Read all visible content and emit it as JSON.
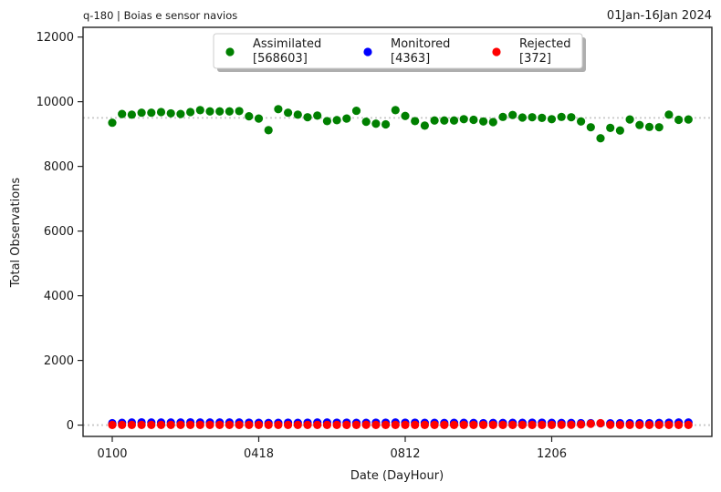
{
  "header": {
    "left_title": "q-180  |  Boias e sensor navios",
    "right_title": "01Jan-16Jan 2024"
  },
  "chart_data": {
    "type": "scatter",
    "xlabel": "Date (DayHour)",
    "ylabel": "Total Observations",
    "ylim": [
      -350,
      12300
    ],
    "yticks": [
      0,
      2000,
      4000,
      6000,
      8000,
      10000,
      12000
    ],
    "xticks": [
      {
        "index": 0,
        "label": "0100"
      },
      {
        "index": 15,
        "label": "0418"
      },
      {
        "index": 30,
        "label": "0812"
      },
      {
        "index": 45,
        "label": "1206"
      }
    ],
    "reference_lines": [
      9500,
      0
    ],
    "legend_position": "top-center",
    "colors": {
      "assimilated": "#008000",
      "monitored": "#0000ff",
      "rejected": "#ff0000"
    },
    "series": [
      {
        "name": "Assimilated",
        "count_label": "[568603]",
        "color": "#008000",
        "values": [
          9350,
          9620,
          9600,
          9660,
          9660,
          9680,
          9640,
          9620,
          9680,
          9740,
          9700,
          9700,
          9700,
          9710,
          9550,
          9480,
          9120,
          9770,
          9660,
          9600,
          9520,
          9570,
          9400,
          9430,
          9480,
          9720,
          9380,
          9320,
          9300,
          9740,
          9560,
          9400,
          9260,
          9420,
          9420,
          9420,
          9460,
          9440,
          9390,
          9370,
          9530,
          9590,
          9510,
          9520,
          9500,
          9460,
          9530,
          9520,
          9390,
          9210,
          8870,
          9190,
          9110,
          9450,
          9280,
          9220,
          9210,
          9600,
          9440,
          9450
        ]
      },
      {
        "name": "Monitored",
        "count_label": "[4363]",
        "color": "#0000ff",
        "values": [
          60,
          70,
          80,
          85,
          80,
          80,
          80,
          80,
          85,
          80,
          80,
          80,
          80,
          80,
          75,
          70,
          65,
          70,
          75,
          70,
          75,
          80,
          80,
          75,
          75,
          70,
          70,
          75,
          75,
          80,
          75,
          75,
          70,
          70,
          65,
          70,
          70,
          65,
          60,
          65,
          65,
          70,
          70,
          75,
          75,
          70,
          65,
          65,
          60,
          60,
          55,
          55,
          60,
          60,
          60,
          60,
          65,
          75,
          80,
          80
        ]
      },
      {
        "name": "Rejected",
        "count_label": "[372]",
        "color": "#ff0000",
        "values": [
          5,
          5,
          5,
          5,
          5,
          5,
          5,
          5,
          5,
          5,
          5,
          5,
          5,
          5,
          5,
          5,
          5,
          5,
          5,
          5,
          5,
          5,
          5,
          5,
          5,
          5,
          10,
          5,
          5,
          5,
          5,
          5,
          5,
          5,
          5,
          5,
          5,
          5,
          5,
          5,
          5,
          5,
          5,
          5,
          5,
          5,
          10,
          10,
          20,
          40,
          60,
          10,
          5,
          5,
          5,
          5,
          5,
          5,
          5,
          5
        ]
      }
    ]
  }
}
